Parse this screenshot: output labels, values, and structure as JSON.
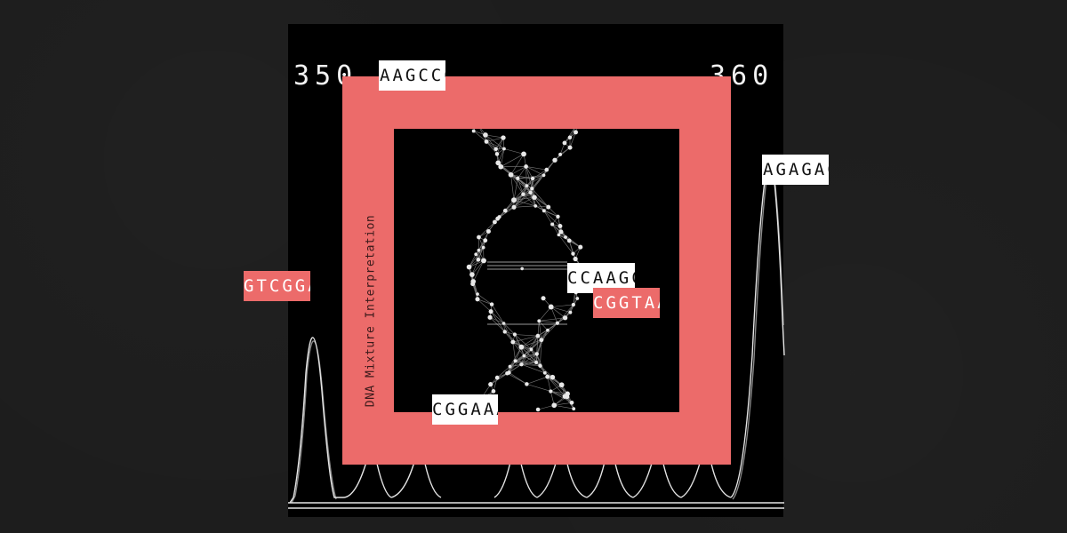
{
  "title": "DNA Mixture Interpretation",
  "axis": {
    "left_number": "350",
    "right_number": "360"
  },
  "sequence_tags": [
    {
      "id": "top",
      "text": "AAGCCC",
      "style": "white"
    },
    {
      "id": "right",
      "text": "AGAGAC",
      "style": "white"
    },
    {
      "id": "left",
      "text": "GTCGGA",
      "style": "red"
    },
    {
      "id": "center1",
      "text": "CCAAGC",
      "style": "white"
    },
    {
      "id": "center2",
      "text": "CGGTAA",
      "style": "red"
    },
    {
      "id": "bottom",
      "text": "CGGAAA",
      "style": "white"
    }
  ],
  "colors": {
    "background": "#1d1d1d",
    "panel": "#000000",
    "accent_red": "#ec6b6a",
    "trace": "#f2f2f2"
  },
  "icons": [
    "dna-helix-network",
    "electropherogram-trace"
  ]
}
